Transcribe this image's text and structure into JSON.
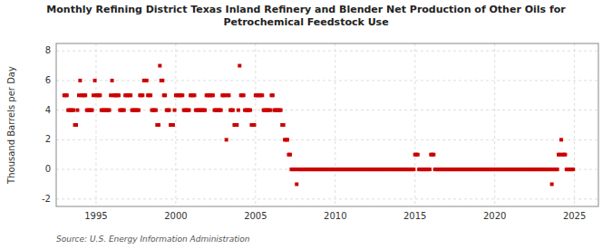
{
  "chart_data": {
    "type": "scatter",
    "title": "Monthly Refining District Texas Inland Refinery and Blender Net Production of Other Oils for\nPetrochemical Feedstock Use",
    "ylabel": "Thousand Barrels per Day",
    "source": "Source: U.S. Energy Information Administration",
    "color": "#cc0000",
    "marker": "square",
    "grid": true,
    "xlim": [
      1992.5,
      2026.5
    ],
    "xticks": [
      1995,
      2000,
      2005,
      2010,
      2015,
      2020,
      2025
    ],
    "ylim": [
      -2.5,
      8.5
    ],
    "yticks": [
      -2,
      0,
      2,
      4,
      6,
      8
    ],
    "x": [
      1993.0,
      1993.08,
      1993.17,
      1993.25,
      1993.33,
      1993.42,
      1993.5,
      1993.58,
      1993.67,
      1993.75,
      1993.83,
      1993.92,
      1994.0,
      1994.08,
      1994.17,
      1994.25,
      1994.33,
      1994.42,
      1994.5,
      1994.58,
      1994.67,
      1994.75,
      1994.83,
      1994.92,
      1995.0,
      1995.08,
      1995.17,
      1995.25,
      1995.33,
      1995.42,
      1995.5,
      1995.58,
      1995.67,
      1995.75,
      1995.83,
      1995.92,
      1996.0,
      1996.08,
      1996.17,
      1996.25,
      1996.33,
      1996.42,
      1996.5,
      1996.58,
      1996.67,
      1996.75,
      1996.83,
      1996.92,
      1997.0,
      1997.08,
      1997.17,
      1997.25,
      1997.33,
      1997.42,
      1997.5,
      1997.58,
      1997.67,
      1997.75,
      1997.83,
      1997.92,
      1998.0,
      1998.08,
      1998.17,
      1998.25,
      1998.33,
      1998.42,
      1998.5,
      1998.58,
      1998.67,
      1998.75,
      1998.83,
      1998.92,
      1999.0,
      1999.08,
      1999.17,
      1999.25,
      1999.33,
      1999.42,
      1999.5,
      1999.58,
      1999.67,
      1999.75,
      1999.83,
      1999.92,
      2000.0,
      2000.08,
      2000.17,
      2000.25,
      2000.33,
      2000.42,
      2000.5,
      2000.58,
      2000.67,
      2000.75,
      2000.83,
      2000.92,
      2001.0,
      2001.08,
      2001.17,
      2001.25,
      2001.33,
      2001.42,
      2001.5,
      2001.58,
      2001.67,
      2001.75,
      2001.83,
      2001.92,
      2002.0,
      2002.08,
      2002.17,
      2002.25,
      2002.33,
      2002.42,
      2002.5,
      2002.58,
      2002.67,
      2002.75,
      2002.83,
      2002.92,
      2003.0,
      2003.08,
      2003.17,
      2003.25,
      2003.33,
      2003.42,
      2003.5,
      2003.58,
      2003.67,
      2003.75,
      2003.83,
      2003.92,
      2004.0,
      2004.08,
      2004.17,
      2004.25,
      2004.33,
      2004.42,
      2004.5,
      2004.58,
      2004.67,
      2004.75,
      2004.83,
      2004.92,
      2005.0,
      2005.08,
      2005.17,
      2005.25,
      2005.33,
      2005.42,
      2005.5,
      2005.58,
      2005.67,
      2005.75,
      2005.83,
      2005.92,
      2006.0,
      2006.08,
      2006.17,
      2006.25,
      2006.33,
      2006.42,
      2006.5,
      2006.58,
      2006.67,
      2006.75,
      2006.83,
      2006.92,
      2007.0,
      2007.08,
      2007.17,
      2007.25,
      2007.33,
      2007.42,
      2007.5,
      2007.58,
      2007.67,
      2007.75,
      2007.83,
      2007.92,
      2008.0,
      2008.08,
      2008.17,
      2008.25,
      2008.33,
      2008.42,
      2008.5,
      2008.58,
      2008.67,
      2008.75,
      2008.83,
      2008.92,
      2009.0,
      2009.08,
      2009.17,
      2009.25,
      2009.33,
      2009.42,
      2009.5,
      2009.58,
      2009.67,
      2009.75,
      2009.83,
      2009.92,
      2010.0,
      2010.08,
      2010.17,
      2010.25,
      2010.33,
      2010.42,
      2010.5,
      2010.58,
      2010.67,
      2010.75,
      2010.83,
      2010.92,
      2011.0,
      2011.08,
      2011.17,
      2011.25,
      2011.33,
      2011.42,
      2011.5,
      2011.58,
      2011.67,
      2011.75,
      2011.83,
      2011.92,
      2012.0,
      2012.08,
      2012.17,
      2012.25,
      2012.33,
      2012.42,
      2012.5,
      2012.58,
      2012.67,
      2012.75,
      2012.83,
      2012.92,
      2013.0,
      2013.08,
      2013.17,
      2013.25,
      2013.33,
      2013.42,
      2013.5,
      2013.58,
      2013.67,
      2013.75,
      2013.83,
      2013.92,
      2014.0,
      2014.08,
      2014.17,
      2014.25,
      2014.33,
      2014.42,
      2014.5,
      2014.58,
      2014.67,
      2014.75,
      2014.83,
      2014.92,
      2015.0,
      2015.08,
      2015.17,
      2015.25,
      2015.33,
      2015.42,
      2015.5,
      2015.58,
      2015.67,
      2015.75,
      2015.83,
      2015.92,
      2016.0,
      2016.08,
      2016.17,
      2016.25,
      2016.33,
      2016.42,
      2016.5,
      2016.58,
      2016.67,
      2016.75,
      2016.83,
      2016.92,
      2017.0,
      2017.08,
      2017.17,
      2017.25,
      2017.33,
      2017.42,
      2017.5,
      2017.58,
      2017.67,
      2017.75,
      2017.83,
      2017.92,
      2018.0,
      2018.08,
      2018.17,
      2018.25,
      2018.33,
      2018.42,
      2018.5,
      2018.58,
      2018.67,
      2018.75,
      2018.83,
      2018.92,
      2019.0,
      2019.08,
      2019.17,
      2019.25,
      2019.33,
      2019.42,
      2019.5,
      2019.58,
      2019.67,
      2019.75,
      2019.83,
      2019.92,
      2020.0,
      2020.08,
      2020.17,
      2020.25,
      2020.33,
      2020.42,
      2020.5,
      2020.58,
      2020.67,
      2020.75,
      2020.83,
      2020.92,
      2021.0,
      2021.08,
      2021.17,
      2021.25,
      2021.33,
      2021.42,
      2021.5,
      2021.58,
      2021.67,
      2021.75,
      2021.83,
      2021.92,
      2022.0,
      2022.08,
      2022.17,
      2022.25,
      2022.33,
      2022.42,
      2022.5,
      2022.58,
      2022.67,
      2022.75,
      2022.83,
      2022.92,
      2023.0,
      2023.08,
      2023.17,
      2023.25,
      2023.33,
      2023.42,
      2023.5,
      2023.58,
      2023.67,
      2023.75,
      2023.83,
      2023.92,
      2024.0,
      2024.08,
      2024.17,
      2024.25,
      2024.33,
      2024.42,
      2024.5,
      2024.58,
      2024.67,
      2024.75,
      2024.83,
      2024.92
    ],
    "values": [
      5,
      5,
      5,
      4,
      4,
      4,
      4,
      4,
      3,
      3,
      4,
      5,
      6,
      5,
      5,
      5,
      5,
      4,
      4,
      4,
      4,
      4,
      5,
      6,
      5,
      5,
      5,
      5,
      4,
      4,
      4,
      4,
      4,
      4,
      4,
      5,
      6,
      5,
      5,
      5,
      5,
      5,
      4,
      4,
      4,
      4,
      5,
      5,
      5,
      5,
      5,
      4,
      4,
      4,
      4,
      4,
      4,
      5,
      5,
      5,
      6,
      6,
      6,
      5,
      5,
      5,
      4,
      4,
      4,
      4,
      3,
      3,
      7,
      6,
      6,
      5,
      5,
      4,
      4,
      4,
      3,
      3,
      3,
      4,
      5,
      5,
      5,
      5,
      5,
      5,
      4,
      4,
      4,
      4,
      4,
      5,
      5,
      5,
      5,
      4,
      4,
      4,
      4,
      4,
      4,
      4,
      4,
      5,
      5,
      5,
      5,
      5,
      5,
      4,
      4,
      4,
      4,
      4,
      4,
      5,
      5,
      5,
      2,
      5,
      5,
      4,
      4,
      4,
      3,
      3,
      3,
      4,
      7,
      5,
      5,
      5,
      4,
      4,
      4,
      4,
      4,
      3,
      3,
      3,
      5,
      5,
      5,
      5,
      5,
      5,
      4,
      4,
      4,
      4,
      4,
      4,
      5,
      5,
      4,
      4,
      4,
      4,
      4,
      4,
      3,
      3,
      2,
      2,
      2,
      1,
      1,
      0,
      0,
      0,
      0,
      -1,
      0,
      0,
      0,
      0,
      0,
      0,
      0,
      0,
      0,
      0,
      0,
      0,
      0,
      0,
      0,
      0,
      0,
      0,
      0,
      0,
      0,
      0,
      0,
      0,
      0,
      0,
      0,
      0,
      0,
      0,
      0,
      0,
      0,
      0,
      0,
      0,
      0,
      0,
      0,
      0,
      0,
      0,
      0,
      0,
      0,
      0,
      0,
      0,
      0,
      0,
      0,
      0,
      0,
      0,
      0,
      0,
      0,
      0,
      0,
      0,
      0,
      0,
      0,
      0,
      0,
      0,
      0,
      0,
      0,
      0,
      0,
      0,
      0,
      0,
      0,
      0,
      0,
      0,
      0,
      0,
      0,
      0,
      0,
      0,
      0,
      0,
      0,
      0,
      1,
      1,
      1,
      0,
      0,
      0,
      0,
      0,
      0,
      0,
      0,
      0,
      1,
      1,
      1,
      0,
      0,
      0,
      0,
      0,
      0,
      0,
      0,
      0,
      0,
      0,
      0,
      0,
      0,
      0,
      0,
      0,
      0,
      0,
      0,
      0,
      0,
      0,
      0,
      0,
      0,
      0,
      0,
      0,
      0,
      0,
      0,
      0,
      0,
      0,
      0,
      0,
      0,
      0,
      0,
      0,
      0,
      0,
      0,
      0,
      0,
      0,
      0,
      0,
      0,
      0,
      0,
      0,
      0,
      0,
      0,
      0,
      0,
      0,
      0,
      0,
      0,
      0,
      0,
      0,
      0,
      0,
      0,
      0,
      0,
      0,
      0,
      0,
      0,
      0,
      0,
      0,
      0,
      0,
      0,
      0,
      0,
      0,
      0,
      0,
      0,
      0,
      0,
      -1,
      0,
      0,
      0,
      0,
      1,
      1,
      2,
      1,
      1,
      1,
      0,
      0,
      0,
      0,
      0,
      0
    ]
  }
}
